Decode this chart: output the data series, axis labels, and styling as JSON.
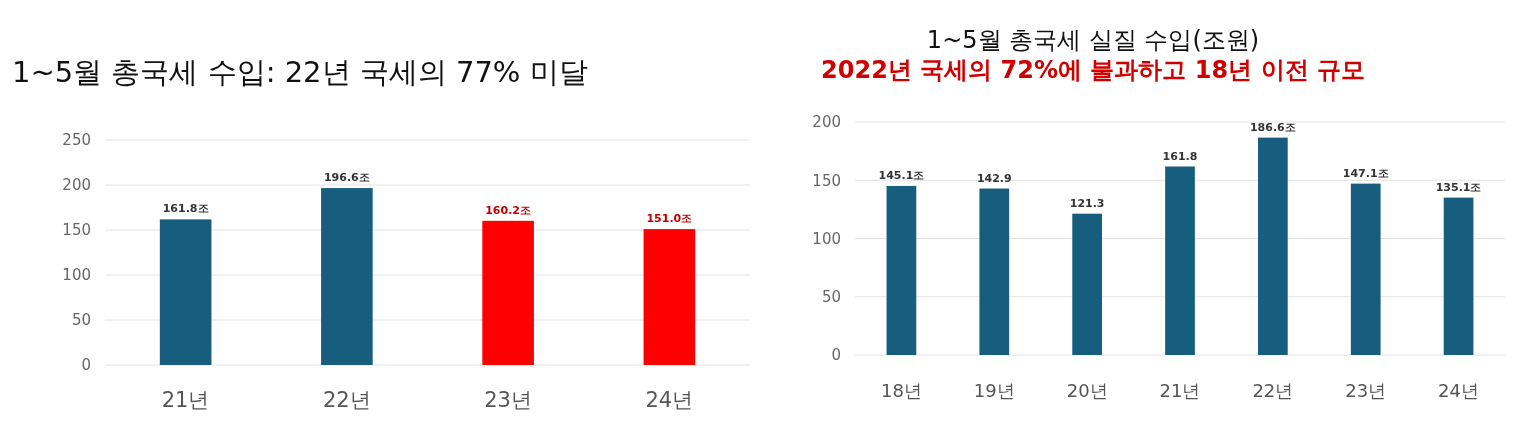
{
  "chart_data": [
    {
      "type": "bar",
      "title": "1~5월 총국세 수입: 22년 국세의 77% 미달",
      "categories": [
        "21년",
        "22년",
        "23년",
        "24년"
      ],
      "values": [
        161.8,
        196.6,
        160.2,
        151.0
      ],
      "colors": [
        "#175e7e",
        "#175e7e",
        "#ff0000",
        "#ff0000"
      ],
      "value_labels": [
        "161.8조",
        "196.6조",
        "160.2조",
        "151.0조"
      ],
      "ylim": [
        0,
        250
      ],
      "yticks": [
        0,
        50,
        100,
        150,
        200,
        250
      ],
      "grid": "y"
    },
    {
      "type": "bar",
      "title": "1~5월 총국세 실질 수입(조원)",
      "subtitle": "2022년 국세의 72%에 불과하고 18년 이전 규모",
      "categories": [
        "18년",
        "19년",
        "20년",
        "21년",
        "22년",
        "23년",
        "24년"
      ],
      "values": [
        145.1,
        142.9,
        121.3,
        161.8,
        186.6,
        147.1,
        135.1
      ],
      "color": "#175e7e",
      "value_labels": [
        "145.1조",
        "142.9",
        "121.3",
        "161.8",
        "186.6조",
        "147.1조",
        "135.1조"
      ],
      "ylim": [
        0,
        200
      ],
      "yticks": [
        0,
        50,
        100,
        150,
        200
      ],
      "grid": "y"
    }
  ]
}
